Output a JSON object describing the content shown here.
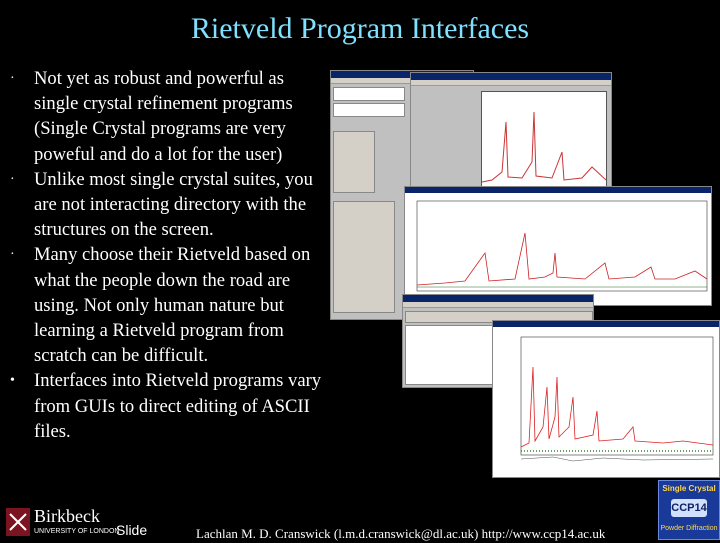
{
  "slide": {
    "title": "Rietveld Program Interfaces",
    "bullets": [
      "Not yet as robust and powerful as single crystal refinement programs (Single Crystal programs are very poweful and do a lot for the user)",
      "Unlike most single crystal suites, you are not interacting directory with the structures on the screen.",
      "Many choose their Rietveld based on what the people down the road are using.  Not only human nature but learning a Rietveld program from scratch can be difficult.",
      "Interfaces into Rietveld programs vary from GUIs to direct editing of ASCII files."
    ],
    "bullet_symbols": [
      "·",
      "·",
      "·",
      "•"
    ],
    "footer_slide": "Slide",
    "footer_credit": "Lachlan M. D. Cranswick (l.m.d.cranswick@dl.ac.uk) http://www.ccp14.ac.uk",
    "logo_name": "Birkbeck",
    "logo_subtitle": "UNIVERSITY OF LONDON",
    "ccp_top": "Single Crystal",
    "ccp_mid": "CCP14",
    "ccp_bottom": "Powder Diffraction"
  },
  "colors": {
    "title": "#7fe0ff",
    "background": "#000000",
    "text": "#ffffff"
  }
}
